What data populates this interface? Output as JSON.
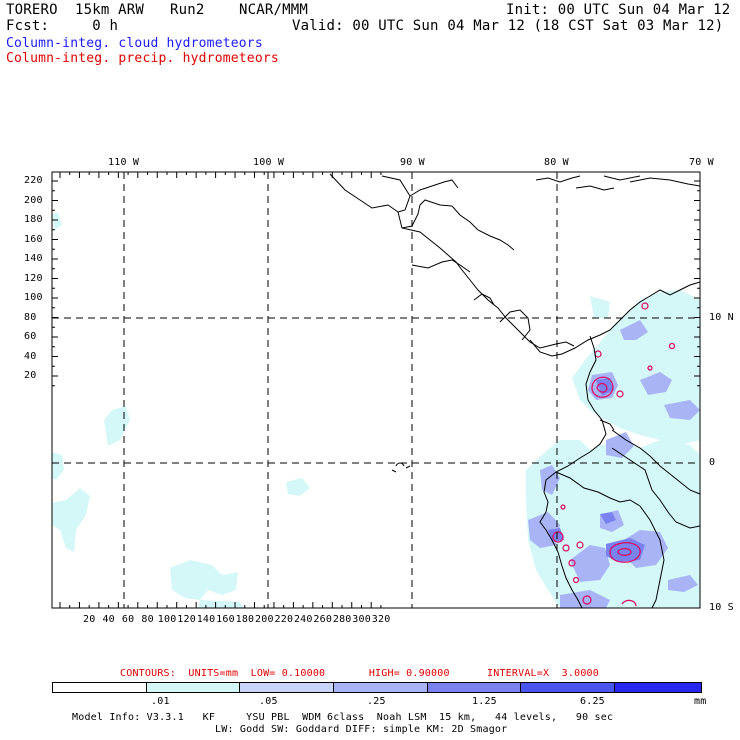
{
  "header": {
    "model_line": "TORERO  15km ARW   Run2    NCAR/MMM",
    "fcst_line": "Fcst:     0 h",
    "init_line": "Init: 00 UTC Sun 04 Mar 12",
    "valid_line": "Valid: 00 UTC Sun 04 Mar 12 (18 CST Sat 03 Mar 12)",
    "field1": "Column-integ. cloud hydrometeors",
    "field2": "Column-integ. precip. hydrometeors"
  },
  "map": {
    "top_lon_labels": [
      "110 W",
      "100 W",
      "90 W",
      "80 W",
      "70 W"
    ],
    "right_lat_labels": [
      "10 N",
      "0",
      "10 S"
    ],
    "y_ticks": [
      "220",
      "200",
      "180",
      "160",
      "140",
      "120",
      "100",
      "80",
      "60",
      "40",
      "20"
    ],
    "x_ticks": [
      "20",
      "40",
      "60",
      "80",
      "100",
      "120",
      "140",
      "160",
      "180",
      "200",
      "220",
      "240",
      "260",
      "280",
      "300",
      "320"
    ]
  },
  "footer": {
    "contours_text": "CONTOURS:  UNITS=mm  LOW= 0.10000       HIGH= 0.90000      INTERVAL=X  3.0000",
    "colorbar_labels": [
      ".01",
      ".05",
      ".25",
      "1.25",
      "6.25"
    ],
    "colorbar_unit": "mm",
    "colorbar_colors": [
      "#ffffff",
      "#d4f7f7",
      "#c8d4fa",
      "#a8b4f5",
      "#7a82f0",
      "#4a54ee",
      "#2626ee"
    ],
    "model_info_1": "Model Info: V3.3.1   KF     YSU PBL  WDM 6class  Noah LSM  15 km,   44 levels,   90 sec",
    "model_info_2": "LW: Godd SW: Goddard DIFF: simple KM: 2D Smagor"
  }
}
